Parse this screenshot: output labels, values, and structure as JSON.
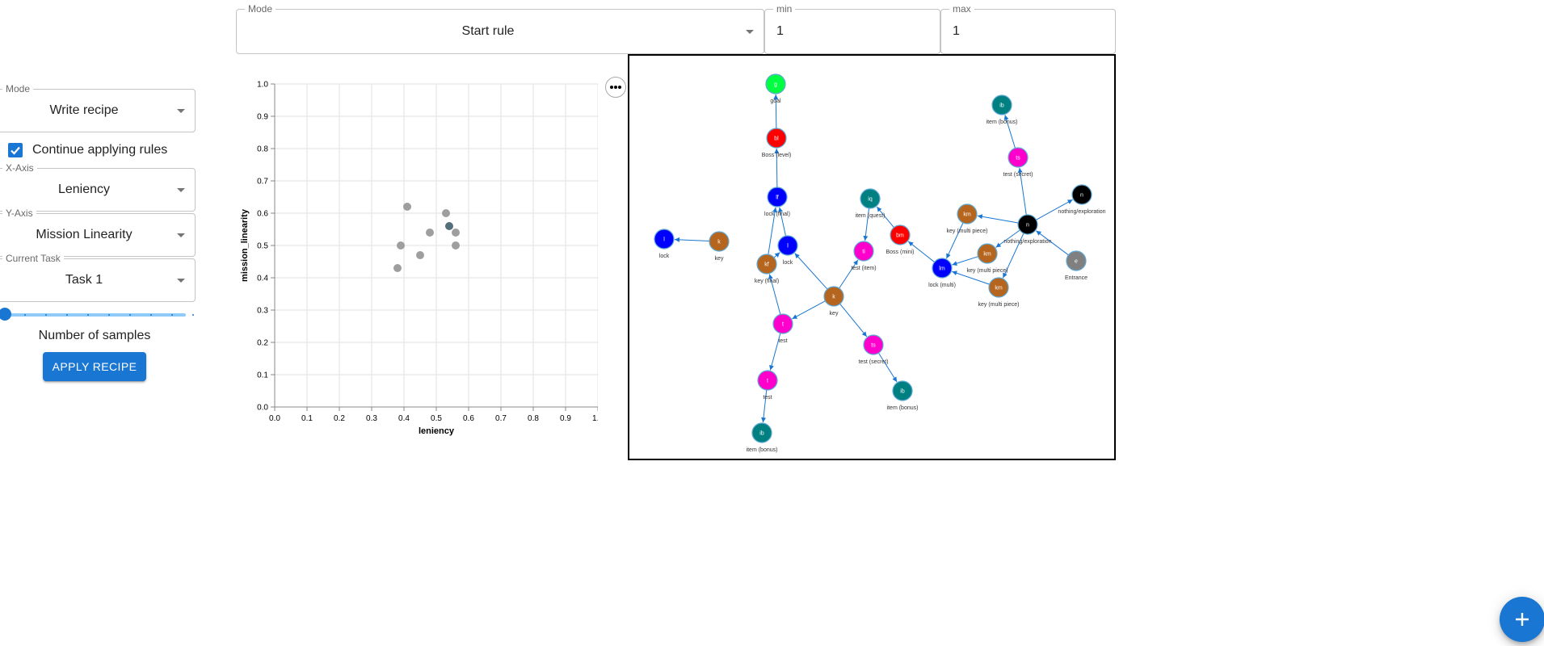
{
  "top_controls": {
    "mode": {
      "label": "Mode",
      "value": "Start rule"
    },
    "min": {
      "label": "min",
      "value": "1"
    },
    "max": {
      "label": "max",
      "value": "1"
    }
  },
  "sidebar": {
    "mode": {
      "label": "Mode",
      "value": "Write recipe"
    },
    "continue_applying": {
      "label": "Continue applying rules",
      "checked": true
    },
    "x_axis": {
      "label": "X-Axis",
      "value": "Leniency"
    },
    "y_axis": {
      "label": "Y-Axis",
      "value": "Mission Linearity"
    },
    "current_task": {
      "label": "Current Task",
      "value": "Task 1"
    },
    "samples_slider": {
      "value_fraction": 0.0,
      "ticks": 9
    },
    "samples_label": "Number of samples",
    "apply_button": "APPLY RECIPE"
  },
  "chart_data": {
    "type": "scatter",
    "xlabel": "leniency",
    "ylabel": "mission_linearity",
    "xlim": [
      0,
      1
    ],
    "ylim": [
      0,
      1
    ],
    "grid": true,
    "ticks": [
      "0.0",
      "0.1",
      "0.2",
      "0.3",
      "0.4",
      "0.5",
      "0.6",
      "0.7",
      "0.8",
      "0.9",
      "1.0"
    ],
    "points": [
      {
        "x": 0.41,
        "y": 0.62,
        "selected": false
      },
      {
        "x": 0.53,
        "y": 0.6,
        "selected": false
      },
      {
        "x": 0.54,
        "y": 0.56,
        "selected": true
      },
      {
        "x": 0.48,
        "y": 0.54,
        "selected": false
      },
      {
        "x": 0.56,
        "y": 0.54,
        "selected": false
      },
      {
        "x": 0.39,
        "y": 0.5,
        "selected": false
      },
      {
        "x": 0.56,
        "y": 0.5,
        "selected": false
      },
      {
        "x": 0.45,
        "y": 0.47,
        "selected": false
      },
      {
        "x": 0.38,
        "y": 0.43,
        "selected": false
      }
    ],
    "colors": {
      "point": "#9e9e9e",
      "selected": "#546e7a",
      "grid": "#e0e0e0"
    }
  },
  "graph": {
    "colors": {
      "edge": "#1976d2"
    },
    "nodes": [
      {
        "id": "g",
        "abbr": "g",
        "label": "goal",
        "color": "#00ff40"
      },
      {
        "id": "bl",
        "abbr": "bl",
        "label": "Boss (level)",
        "color": "#ff0000"
      },
      {
        "id": "lf",
        "abbr": "lf",
        "label": "lock (final)",
        "color": "#0000ff"
      },
      {
        "id": "l1",
        "abbr": "l",
        "label": "lock",
        "color": "#0000ff"
      },
      {
        "id": "k1",
        "abbr": "k",
        "label": "key",
        "color": "#b5651d"
      },
      {
        "id": "l2",
        "abbr": "l",
        "label": "lock",
        "color": "#0000ff"
      },
      {
        "id": "kf",
        "abbr": "kf",
        "label": "key (final)",
        "color": "#b5651d"
      },
      {
        "id": "k2",
        "abbr": "k",
        "label": "key",
        "color": "#b5651d"
      },
      {
        "id": "t1",
        "abbr": "t",
        "label": "test",
        "color": "#ff00cc"
      },
      {
        "id": "t2",
        "abbr": "t",
        "label": "test",
        "color": "#ff00cc"
      },
      {
        "id": "ib1",
        "abbr": "ib",
        "label": "item (bonus)",
        "color": "#008080"
      },
      {
        "id": "iq",
        "abbr": "iq",
        "label": "item (quest)",
        "color": "#008080"
      },
      {
        "id": "ti",
        "abbr": "ti",
        "label": "test (item)",
        "color": "#ff00cc"
      },
      {
        "id": "ts1",
        "abbr": "ts",
        "label": "test (secret)",
        "color": "#ff00cc"
      },
      {
        "id": "ib2",
        "abbr": "ib",
        "label": "item (bonus)",
        "color": "#008080"
      },
      {
        "id": "bm",
        "abbr": "bm",
        "label": "Boss (mini)",
        "color": "#ff0000"
      },
      {
        "id": "lm",
        "abbr": "lm",
        "label": "lock (multi)",
        "color": "#0000ff"
      },
      {
        "id": "km1",
        "abbr": "km",
        "label": "key (multi piece)",
        "color": "#b5651d"
      },
      {
        "id": "km2",
        "abbr": "km",
        "label": "key (multi piece)",
        "color": "#b5651d"
      },
      {
        "id": "km3",
        "abbr": "km",
        "label": "key (multi piece)",
        "color": "#b5651d"
      },
      {
        "id": "n1",
        "abbr": "n",
        "label": "nothing/exploration",
        "color": "#000000"
      },
      {
        "id": "n2",
        "abbr": "n",
        "label": "nothing/exploration",
        "color": "#000000"
      },
      {
        "id": "e",
        "abbr": "e",
        "label": "Entrance",
        "color": "#808080"
      },
      {
        "id": "ts2",
        "abbr": "ts",
        "label": "test (secret)",
        "color": "#ff00cc"
      },
      {
        "id": "ib3",
        "abbr": "ib",
        "label": "item (bonus)",
        "color": "#008080"
      }
    ],
    "edges": [
      [
        "bl",
        "g"
      ],
      [
        "lf",
        "bl"
      ],
      [
        "kf",
        "lf"
      ],
      [
        "kf",
        "l2"
      ],
      [
        "l2",
        "lf"
      ],
      [
        "k1",
        "l1"
      ],
      [
        "k2",
        "l2"
      ],
      [
        "k2",
        "ti"
      ],
      [
        "k2",
        "ts1"
      ],
      [
        "k2",
        "t1"
      ],
      [
        "t1",
        "kf"
      ],
      [
        "t1",
        "t2"
      ],
      [
        "t2",
        "ib1"
      ],
      [
        "ts1",
        "ib2"
      ],
      [
        "iq",
        "ti"
      ],
      [
        "bm",
        "iq"
      ],
      [
        "lm",
        "bm"
      ],
      [
        "km1",
        "lm"
      ],
      [
        "km2",
        "lm"
      ],
      [
        "km3",
        "lm"
      ],
      [
        "n1",
        "km1"
      ],
      [
        "n1",
        "km2"
      ],
      [
        "n1",
        "km3"
      ],
      [
        "n1",
        "n2"
      ],
      [
        "n1",
        "ts2"
      ],
      [
        "e",
        "n1"
      ],
      [
        "ts2",
        "ib3"
      ]
    ]
  }
}
